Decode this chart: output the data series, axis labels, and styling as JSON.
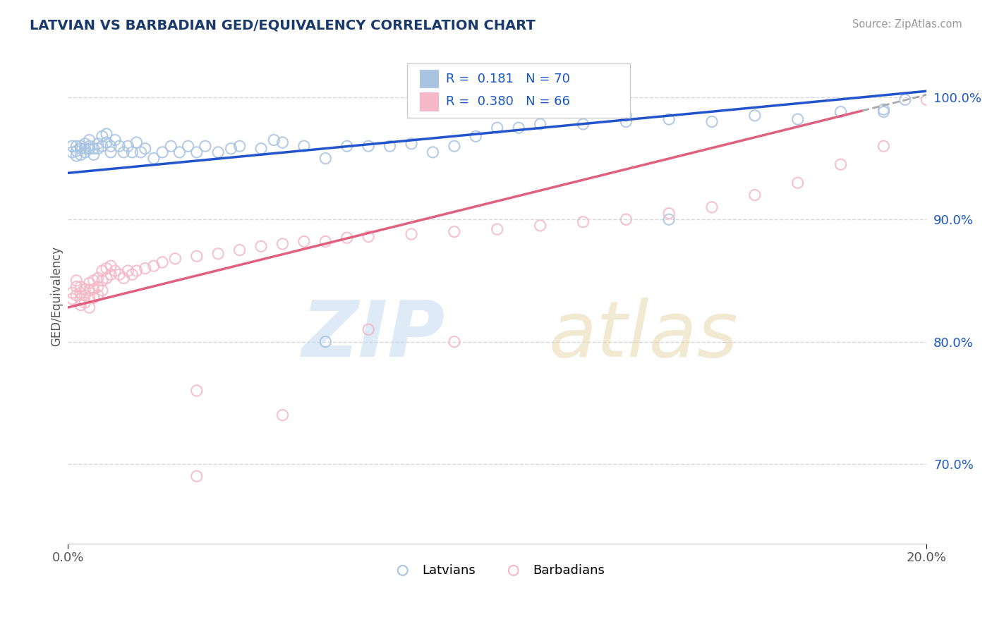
{
  "title": "LATVIAN VS BARBADIAN GED/EQUIVALENCY CORRELATION CHART",
  "source": "Source: ZipAtlas.com",
  "ylabel": "GED/Equivalency",
  "ytick_labels": [
    "70.0%",
    "80.0%",
    "90.0%",
    "100.0%"
  ],
  "ytick_values": [
    0.7,
    0.8,
    0.9,
    1.0
  ],
  "xmin": 0.0,
  "xmax": 0.2,
  "ymin": 0.635,
  "ymax": 1.04,
  "latvian_color": "#a8c4e0",
  "barbadian_color": "#f4b8c8",
  "latvian_line_color": "#2255cc",
  "barbadian_line_color": "#e06080",
  "dashed_line_color": "#aaaaaa",
  "legend_R_latvian": "0.181",
  "legend_N_latvian": "70",
  "legend_R_barbadian": "0.380",
  "legend_N_barbadian": "66",
  "legend_text_color": "#1a56c4",
  "grid_color": "#d8d8d8",
  "background_color": "#ffffff",
  "latvian_x": [
    0.001,
    0.001,
    0.002,
    0.002,
    0.002,
    0.003,
    0.003,
    0.003,
    0.004,
    0.004,
    0.004,
    0.005,
    0.005,
    0.005,
    0.006,
    0.006,
    0.007,
    0.007,
    0.008,
    0.008,
    0.009,
    0.009,
    0.01,
    0.01,
    0.011,
    0.012,
    0.013,
    0.014,
    0.015,
    0.016,
    0.017,
    0.018,
    0.02,
    0.022,
    0.024,
    0.026,
    0.028,
    0.03,
    0.032,
    0.035,
    0.038,
    0.04,
    0.045,
    0.048,
    0.05,
    0.055,
    0.06,
    0.065,
    0.07,
    0.075,
    0.08,
    0.085,
    0.09,
    0.095,
    0.1,
    0.105,
    0.11,
    0.12,
    0.13,
    0.14,
    0.15,
    0.16,
    0.17,
    0.18,
    0.19,
    0.195,
    0.14,
    0.06,
    0.13,
    0.19
  ],
  "latvian_y": [
    0.96,
    0.955,
    0.96,
    0.956,
    0.952,
    0.96,
    0.958,
    0.953,
    0.962,
    0.958,
    0.955,
    0.965,
    0.96,
    0.958,
    0.958,
    0.953,
    0.962,
    0.958,
    0.968,
    0.96,
    0.97,
    0.963,
    0.96,
    0.955,
    0.965,
    0.96,
    0.955,
    0.96,
    0.955,
    0.963,
    0.955,
    0.958,
    0.95,
    0.955,
    0.96,
    0.955,
    0.96,
    0.955,
    0.96,
    0.955,
    0.958,
    0.96,
    0.958,
    0.965,
    0.963,
    0.96,
    0.95,
    0.96,
    0.96,
    0.96,
    0.962,
    0.955,
    0.96,
    0.968,
    0.975,
    0.975,
    0.978,
    0.978,
    0.98,
    0.982,
    0.98,
    0.985,
    0.982,
    0.988,
    0.99,
    0.998,
    0.9,
    0.8,
    0.985,
    0.988
  ],
  "barbadian_x": [
    0.001,
    0.001,
    0.002,
    0.002,
    0.002,
    0.003,
    0.003,
    0.003,
    0.003,
    0.004,
    0.004,
    0.004,
    0.005,
    0.005,
    0.005,
    0.005,
    0.006,
    0.006,
    0.006,
    0.007,
    0.007,
    0.007,
    0.008,
    0.008,
    0.008,
    0.009,
    0.009,
    0.01,
    0.01,
    0.011,
    0.012,
    0.013,
    0.014,
    0.015,
    0.016,
    0.018,
    0.02,
    0.022,
    0.025,
    0.03,
    0.035,
    0.04,
    0.045,
    0.05,
    0.055,
    0.06,
    0.065,
    0.07,
    0.08,
    0.09,
    0.1,
    0.11,
    0.12,
    0.13,
    0.14,
    0.15,
    0.16,
    0.17,
    0.18,
    0.19,
    0.2,
    0.03,
    0.05,
    0.07,
    0.09,
    0.03
  ],
  "barbadian_y": [
    0.84,
    0.835,
    0.85,
    0.845,
    0.838,
    0.845,
    0.84,
    0.835,
    0.83,
    0.843,
    0.838,
    0.832,
    0.848,
    0.842,
    0.836,
    0.828,
    0.85,
    0.843,
    0.836,
    0.852,
    0.845,
    0.838,
    0.858,
    0.85,
    0.842,
    0.86,
    0.852,
    0.862,
    0.855,
    0.858,
    0.855,
    0.852,
    0.858,
    0.855,
    0.858,
    0.86,
    0.862,
    0.865,
    0.868,
    0.87,
    0.872,
    0.875,
    0.878,
    0.88,
    0.882,
    0.882,
    0.885,
    0.886,
    0.888,
    0.89,
    0.892,
    0.895,
    0.898,
    0.9,
    0.905,
    0.91,
    0.92,
    0.93,
    0.945,
    0.96,
    0.998,
    0.76,
    0.74,
    0.81,
    0.8,
    0.69
  ]
}
